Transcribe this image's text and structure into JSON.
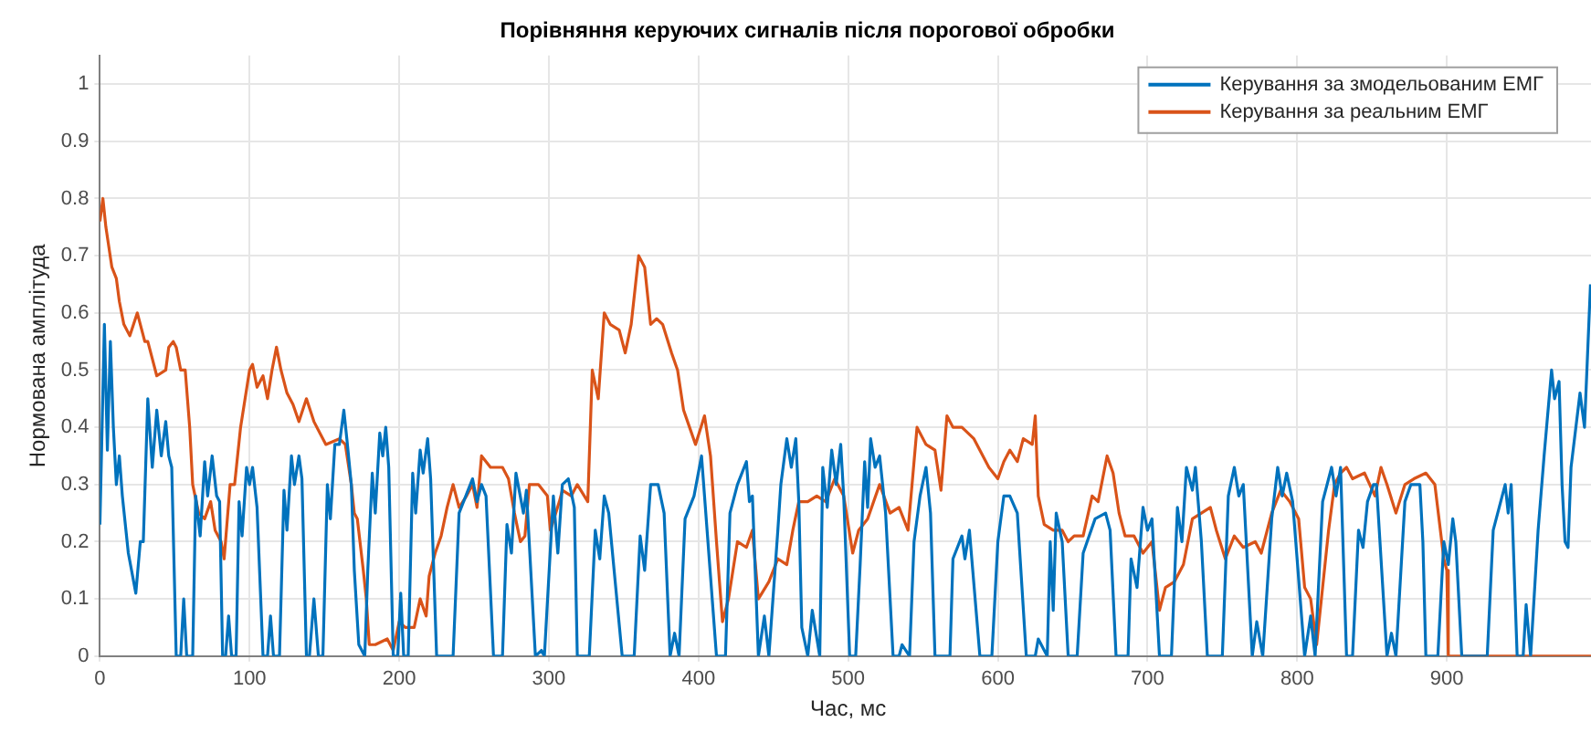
{
  "chart_data": {
    "type": "line",
    "title": "Порівняння керуючих сигналів після порогової обробки",
    "xlabel": "Час, мс",
    "ylabel": "Нормована амплітуда",
    "xlim": [
      0,
      1000
    ],
    "xticks": [
      0,
      100,
      200,
      300,
      400,
      500,
      600,
      700,
      800,
      900
    ],
    "ylim": [
      0,
      1.05
    ],
    "yticks": [
      0,
      0.1,
      0.2,
      0.3,
      0.4,
      0.5,
      0.6,
      0.7,
      0.8,
      0.9,
      1
    ],
    "grid": true,
    "legend": "top right",
    "marker": "none",
    "line_style": "solid",
    "series": [
      {
        "name": "Керування за змодельованим ЕМГ",
        "color": "#0072bd",
        "x": [
          0,
          3,
          5,
          7,
          9,
          11,
          13,
          15,
          19,
          24,
          27,
          29,
          32,
          35,
          38,
          41,
          44,
          46,
          48,
          51,
          54,
          56,
          58,
          62,
          64,
          67,
          70,
          72,
          75,
          78,
          80,
          82,
          84,
          86,
          88,
          91,
          93,
          95,
          98,
          100,
          102,
          105,
          109,
          112,
          114,
          116,
          120,
          123,
          125,
          128,
          130,
          133,
          135,
          138,
          140,
          143,
          146,
          149,
          152,
          154,
          157,
          160,
          163,
          165,
          168,
          170,
          173,
          177,
          179,
          182,
          184,
          187,
          189,
          191,
          193,
          196,
          199,
          201,
          203,
          206,
          209,
          211,
          214,
          216,
          219,
          221,
          225,
          232,
          236,
          240,
          249,
          252,
          255,
          258,
          263,
          269,
          272,
          275,
          278,
          283,
          285,
          291,
          295,
          297,
          303,
          306,
          309,
          313,
          317,
          319,
          327,
          331,
          334,
          337,
          340,
          349,
          357,
          361,
          364,
          368,
          373,
          377,
          381,
          384,
          387,
          391,
          397,
          402,
          412,
          418,
          421,
          426,
          432,
          434,
          436,
          440,
          444,
          447,
          453,
          455,
          459,
          462,
          465,
          467,
          469,
          473,
          476,
          481,
          483,
          486,
          489,
          492,
          495,
          497,
          501,
          505,
          508,
          511,
          513,
          515,
          518,
          521,
          525,
          530,
          534,
          536,
          541,
          544,
          548,
          552,
          555,
          558,
          568,
          570,
          576,
          578,
          581,
          588,
          596,
          600,
          604,
          608,
          613,
          619,
          625,
          627,
          633,
          635,
          637,
          639,
          643,
          647,
          653,
          657,
          665,
          672,
          675,
          679,
          687,
          689,
          693,
          697,
          700,
          703,
          708,
          716,
          720,
          723,
          726,
          730,
          732,
          736,
          740,
          750,
          754,
          758,
          761,
          764,
          770,
          773,
          777,
          783,
          787,
          790,
          793,
          797,
          805,
          809,
          812,
          817,
          823,
          826,
          829,
          833,
          837,
          841,
          844,
          847,
          851,
          853,
          860,
          863,
          866,
          872,
          876,
          882,
          884,
          886,
          894,
          898,
          901,
          904,
          906,
          910,
          927,
          931,
          935,
          939,
          941,
          943,
          947,
          951,
          953,
          956,
          961,
          965,
          970,
          972,
          975,
          977,
          979,
          981,
          983,
          989,
          992,
          996
        ],
        "values": [
          0.23,
          0.58,
          0.36,
          0.55,
          0.4,
          0.3,
          0.35,
          0.28,
          0.18,
          0.11,
          0.2,
          0.2,
          0.45,
          0.33,
          0.43,
          0.35,
          0.41,
          0.35,
          0.33,
          0,
          0,
          0.1,
          0,
          0,
          0.28,
          0.21,
          0.34,
          0.28,
          0.35,
          0.28,
          0.27,
          0,
          0,
          0.07,
          0,
          0,
          0.27,
          0.21,
          0.33,
          0.3,
          0.33,
          0.26,
          0,
          0,
          0.07,
          0,
          0,
          0.29,
          0.22,
          0.35,
          0.3,
          0.35,
          0.31,
          0,
          0,
          0.1,
          0,
          0,
          0.3,
          0.24,
          0.37,
          0.37,
          0.43,
          0.38,
          0.3,
          0.15,
          0.02,
          0,
          0.15,
          0.32,
          0.25,
          0.39,
          0.35,
          0.4,
          0.33,
          0,
          0,
          0.11,
          0,
          0,
          0.32,
          0.25,
          0.36,
          0.32,
          0.38,
          0.31,
          0,
          0,
          0,
          0.25,
          0.31,
          0.27,
          0.3,
          0.28,
          0,
          0,
          0.23,
          0.18,
          0.32,
          0.25,
          0.29,
          0,
          0.01,
          0,
          0.28,
          0.18,
          0.3,
          0.31,
          0.26,
          0,
          0,
          0.22,
          0.17,
          0.28,
          0.25,
          0,
          0,
          0.21,
          0.15,
          0.3,
          0.3,
          0.25,
          0,
          0.04,
          0,
          0.24,
          0.28,
          0.35,
          0,
          0,
          0.25,
          0.3,
          0.34,
          0.27,
          0.28,
          0,
          0.07,
          0,
          0.22,
          0.3,
          0.38,
          0.33,
          0.38,
          0.27,
          0.05,
          0,
          0.08,
          0,
          0.33,
          0.26,
          0.36,
          0.3,
          0.37,
          0.28,
          0,
          0,
          0.16,
          0.34,
          0.26,
          0.38,
          0.33,
          0.35,
          0.25,
          0,
          0,
          0.02,
          0,
          0.2,
          0.28,
          0.33,
          0.25,
          0,
          0,
          0.17,
          0.21,
          0.17,
          0.22,
          0,
          0,
          0.2,
          0.28,
          0.28,
          0.25,
          0,
          0,
          0.03,
          0,
          0.2,
          0.08,
          0.25,
          0.2,
          0,
          0,
          0.18,
          0.24,
          0.25,
          0.22,
          0,
          0,
          0.17,
          0.12,
          0.26,
          0.22,
          0.24,
          0,
          0,
          0.26,
          0.2,
          0.33,
          0.29,
          0.33,
          0.2,
          0,
          0,
          0.28,
          0.33,
          0.28,
          0.3,
          0,
          0.06,
          0,
          0.24,
          0.33,
          0.28,
          0.32,
          0.27,
          0,
          0.07,
          0,
          0.27,
          0.33,
          0.28,
          0.33,
          0,
          0,
          0.22,
          0.19,
          0.27,
          0.3,
          0.3,
          0,
          0.04,
          0,
          0.27,
          0.3,
          0.3,
          0.2,
          0,
          0,
          0.2,
          0.16,
          0.24,
          0.2,
          0,
          0,
          0.22,
          0.26,
          0.3,
          0.25,
          0.3,
          0,
          0,
          0.09,
          0,
          0.22,
          0.35,
          0.5,
          0.45,
          0.48,
          0.3,
          0.2,
          0.19,
          0.33,
          0.46,
          0.4,
          0.65
        ]
      },
      {
        "name": "Керування за реальним ЕМГ",
        "color": "#d95319",
        "x": [
          0,
          2,
          4,
          8,
          11,
          13,
          16,
          20,
          25,
          30,
          32,
          35,
          38,
          44,
          46,
          49,
          51,
          54,
          57,
          60,
          62,
          66,
          70,
          74,
          77,
          81,
          83,
          87,
          90,
          94,
          100,
          102,
          105,
          109,
          112,
          115,
          118,
          121,
          125,
          129,
          133,
          138,
          143,
          147,
          151,
          160,
          164,
          168,
          170,
          172,
          176,
          178,
          180,
          184,
          192,
          196,
          200,
          204,
          210,
          214,
          218,
          220,
          224,
          228,
          232,
          236,
          240,
          245,
          249,
          252,
          255,
          261,
          269,
          273,
          277,
          281,
          284,
          287,
          293,
          299,
          301,
          307,
          309,
          315,
          319,
          326,
          329,
          333,
          337,
          341,
          347,
          351,
          355,
          360,
          364,
          368,
          372,
          376,
          382,
          386,
          390,
          394,
          398,
          404,
          408,
          412,
          416,
          420,
          426,
          432,
          436,
          440,
          447,
          453,
          459,
          463,
          467,
          473,
          479,
          485,
          491,
          497,
          503,
          507,
          513,
          521,
          528,
          534,
          540,
          546,
          552,
          558,
          562,
          566,
          570,
          576,
          584,
          590,
          594,
          600,
          604,
          608,
          613,
          617,
          623,
          625,
          627,
          631,
          637,
          643,
          647,
          651,
          657,
          663,
          667,
          673,
          677,
          681,
          685,
          691,
          697,
          703,
          708,
          712,
          718,
          724,
          730,
          736,
          742,
          746,
          752,
          758,
          764,
          772,
          776,
          783,
          789,
          795,
          801,
          805,
          809,
          813,
          817,
          821,
          825,
          829,
          833,
          837,
          845,
          852,
          856,
          860,
          866,
          872,
          878,
          886,
          892,
          898,
          900,
          901,
          999
        ],
        "values": [
          0.76,
          0.8,
          0.75,
          0.68,
          0.66,
          0.62,
          0.58,
          0.56,
          0.6,
          0.55,
          0.55,
          0.52,
          0.49,
          0.5,
          0.54,
          0.55,
          0.54,
          0.5,
          0.5,
          0.4,
          0.3,
          0.25,
          0.24,
          0.27,
          0.22,
          0.2,
          0.17,
          0.3,
          0.3,
          0.4,
          0.5,
          0.51,
          0.47,
          0.49,
          0.45,
          0.5,
          0.54,
          0.5,
          0.46,
          0.44,
          0.41,
          0.45,
          0.41,
          0.39,
          0.37,
          0.38,
          0.37,
          0.3,
          0.25,
          0.24,
          0.15,
          0.1,
          0.02,
          0.02,
          0.03,
          0.01,
          0.06,
          0.05,
          0.05,
          0.1,
          0.07,
          0.14,
          0.18,
          0.21,
          0.26,
          0.3,
          0.26,
          0.28,
          0.3,
          0.26,
          0.35,
          0.33,
          0.33,
          0.31,
          0.25,
          0.2,
          0.21,
          0.3,
          0.3,
          0.28,
          0.22,
          0.27,
          0.29,
          0.28,
          0.3,
          0.27,
          0.5,
          0.45,
          0.6,
          0.58,
          0.57,
          0.53,
          0.58,
          0.7,
          0.68,
          0.58,
          0.59,
          0.58,
          0.53,
          0.5,
          0.43,
          0.4,
          0.37,
          0.42,
          0.35,
          0.2,
          0.06,
          0.1,
          0.2,
          0.19,
          0.22,
          0.1,
          0.13,
          0.17,
          0.16,
          0.22,
          0.27,
          0.27,
          0.28,
          0.27,
          0.31,
          0.28,
          0.18,
          0.22,
          0.24,
          0.3,
          0.25,
          0.26,
          0.22,
          0.4,
          0.37,
          0.36,
          0.29,
          0.42,
          0.4,
          0.4,
          0.38,
          0.35,
          0.33,
          0.31,
          0.34,
          0.36,
          0.34,
          0.38,
          0.37,
          0.42,
          0.28,
          0.23,
          0.22,
          0.22,
          0.2,
          0.21,
          0.21,
          0.28,
          0.27,
          0.35,
          0.32,
          0.25,
          0.21,
          0.21,
          0.18,
          0.2,
          0.08,
          0.12,
          0.13,
          0.16,
          0.24,
          0.25,
          0.26,
          0.22,
          0.17,
          0.21,
          0.19,
          0.2,
          0.18,
          0.25,
          0.29,
          0.27,
          0.24,
          0.12,
          0.1,
          0.02,
          0.12,
          0.22,
          0.3,
          0.32,
          0.33,
          0.31,
          0.32,
          0.28,
          0.33,
          0.3,
          0.25,
          0.3,
          0.31,
          0.32,
          0.3,
          0.17,
          0.15,
          0,
          0
        ]
      }
    ]
  }
}
